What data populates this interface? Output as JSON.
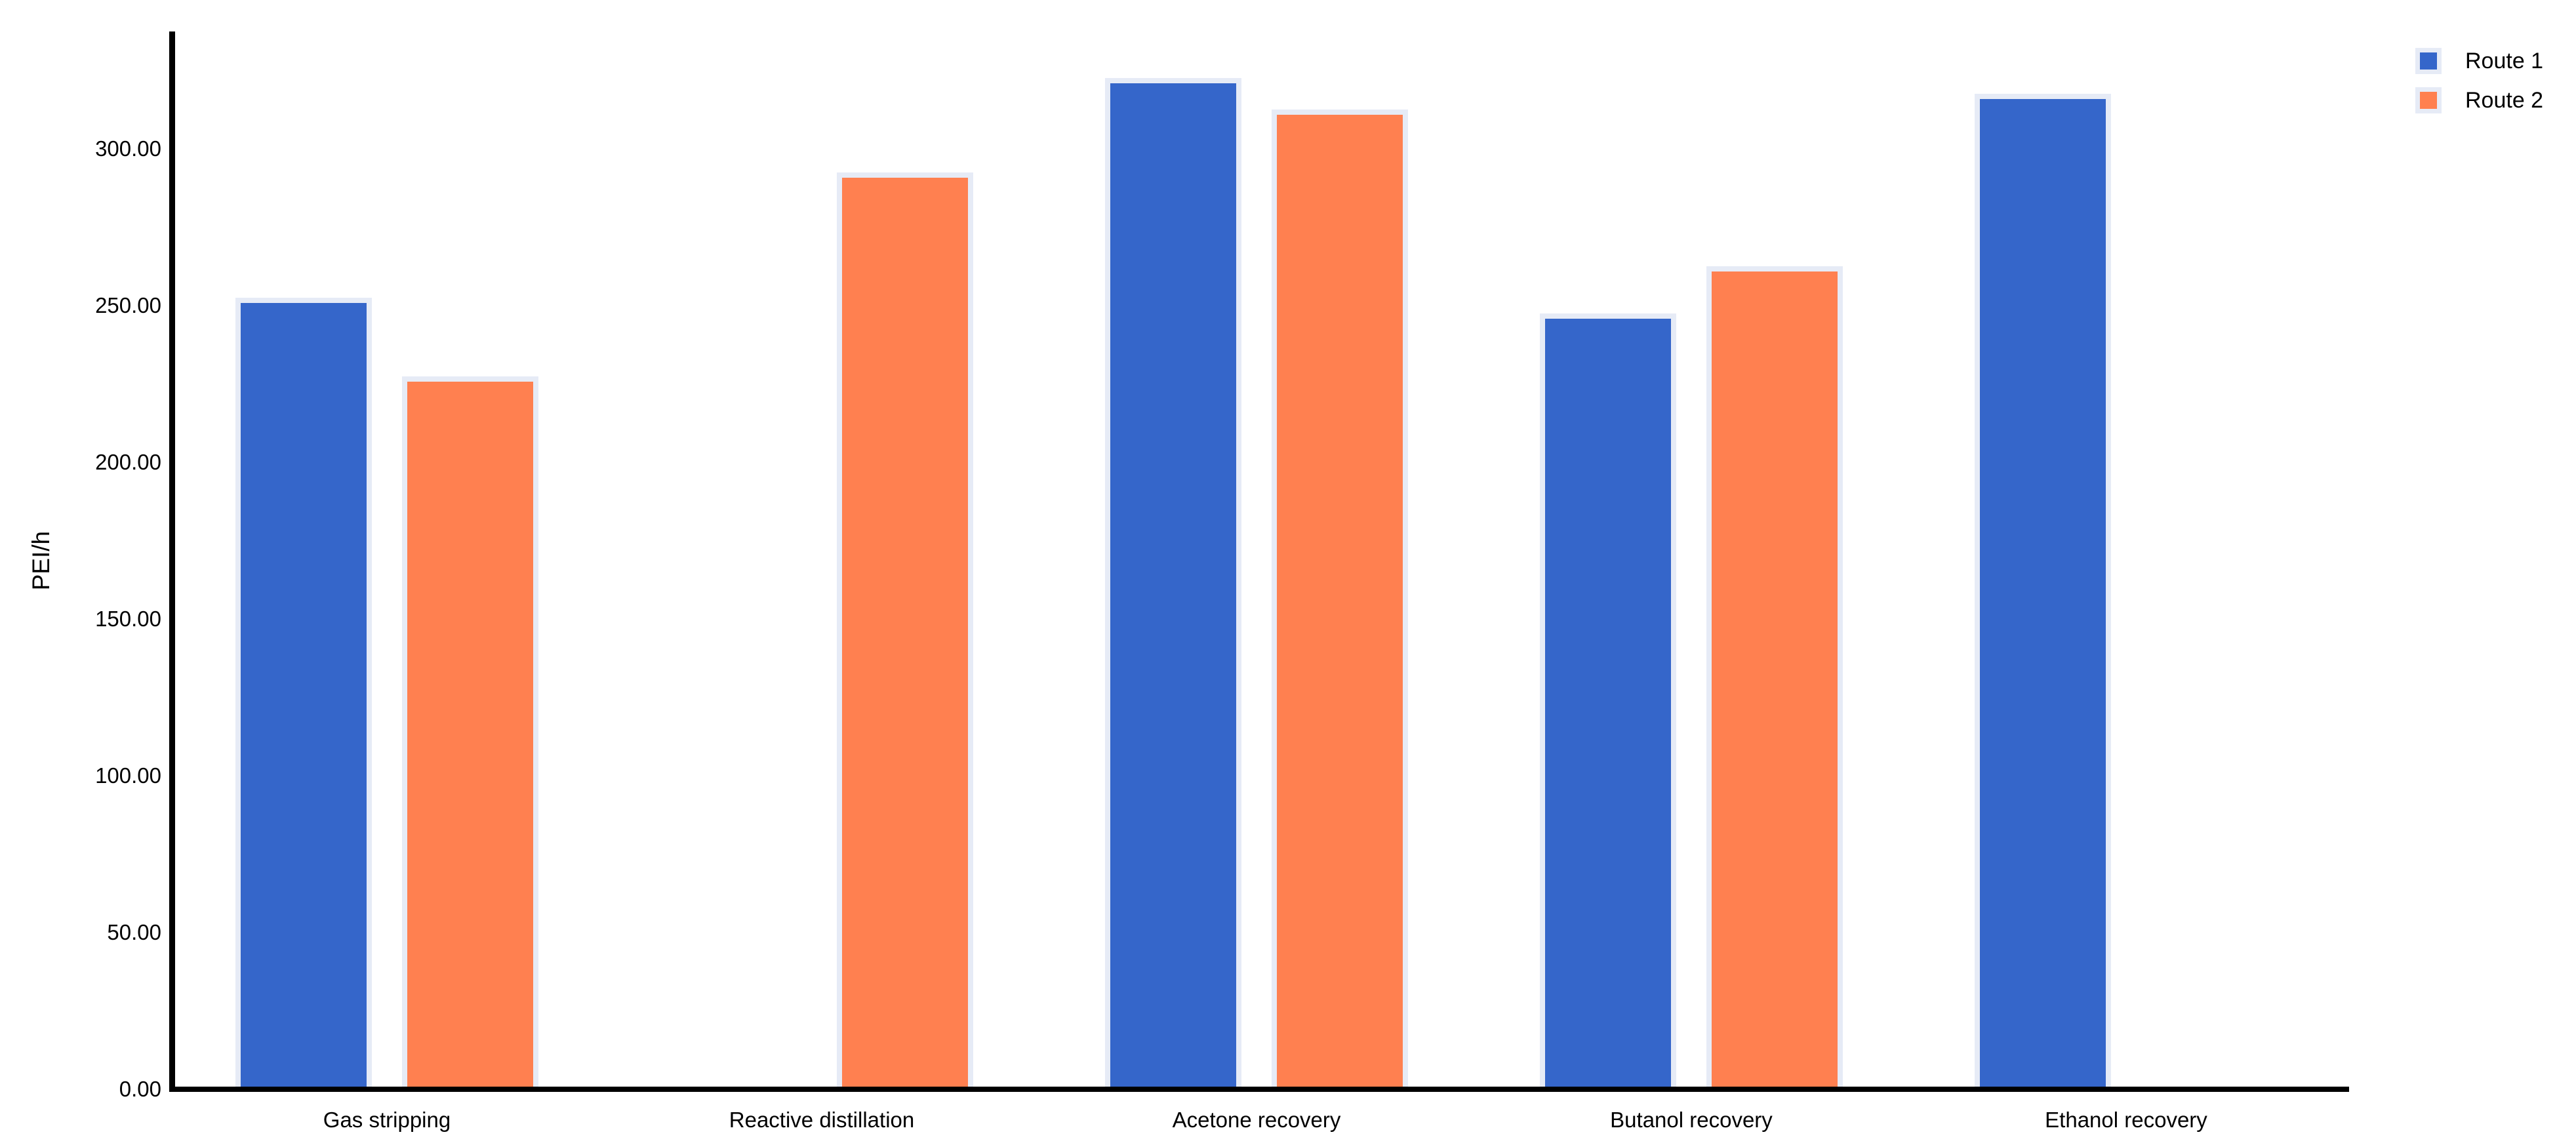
{
  "chart_data": {
    "type": "bar",
    "title": "",
    "xlabel": "",
    "ylabel": "PEI/h",
    "categories": [
      "Gas stripping",
      "Reactive distillation",
      "Acetone recovery",
      "Butanol recovery",
      "Ethanol recovery"
    ],
    "series": [
      {
        "name": "Route 1",
        "color": "#3566CA",
        "values": [
          250,
          null,
          320,
          245,
          315
        ]
      },
      {
        "name": "Route 2",
        "color": "#FF8050",
        "values": [
          225,
          290,
          310,
          260,
          null
        ]
      }
    ],
    "ylim": [
      0,
      337
    ],
    "ytick_values": [
      0,
      50,
      100,
      150,
      200,
      250,
      300
    ],
    "ytick_labels": [
      "0.00",
      "50.00",
      "100.00",
      "150.00",
      "200.00",
      "250.00",
      "300.00"
    ],
    "grid": false,
    "legend_position": "top-right",
    "bar_halo_color": "#E6EBF6",
    "axis_color": "#000000",
    "text_color": "#000000",
    "background_color": "#FFFFFF"
  }
}
